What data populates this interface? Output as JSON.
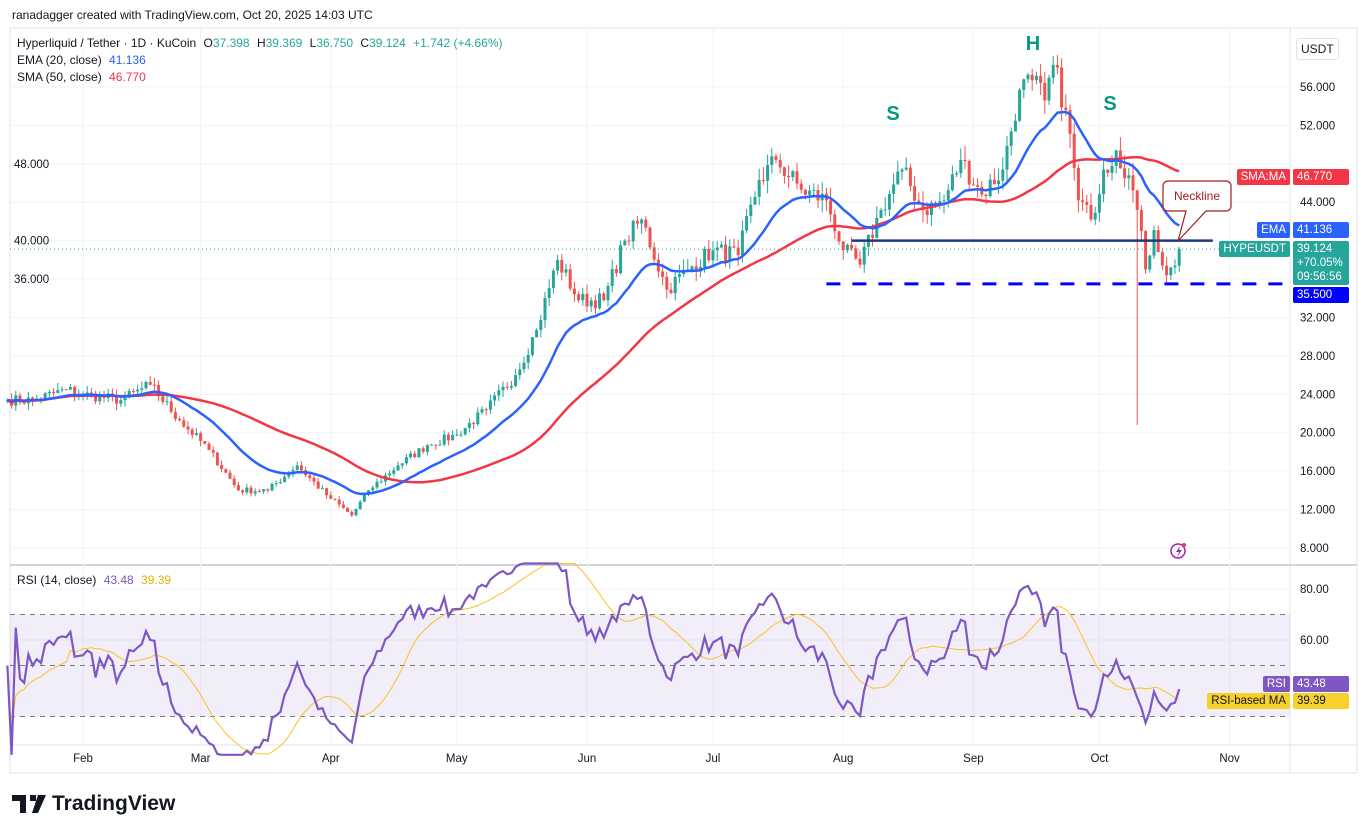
{
  "credit": "ranadagger created with TradingView.com, Oct 20, 2025 14:03 UTC",
  "legend": {
    "symbol": "Hyperliquid / Tether · 1D · KuCoin",
    "o_label": "O",
    "o": "37.398",
    "h_label": "H",
    "h": "39.369",
    "l_label": "L",
    "l": "36.750",
    "c_label": "C",
    "c": "39.124",
    "change": "+1.742 (+4.66%)",
    "ema_label": "EMA (20, close)",
    "ema_value": "41.136",
    "sma_label": "SMA (50, close)",
    "sma_value": "46.770",
    "rsi_label": "RSI (14, close)",
    "rsi_value": "43.48",
    "rsi_ma_value": "39.39"
  },
  "currency": "USDT",
  "price_labels": {
    "sma_tag": "SMA:MA",
    "sma": "46.770",
    "ema_tag": "EMA",
    "ema": "41.136",
    "symbol_tag": "HYPEUSDT",
    "last": "39.124",
    "pct": "+70.05%",
    "countdown": "09:56:56",
    "support": "35.500",
    "rsi_tag": "RSI",
    "rsi": "43.48",
    "rsi_ma_tag": "RSI-based MA",
    "rsi_ma": "39.39"
  },
  "annotations": {
    "head": "H",
    "left_shoulder": "S",
    "right_shoulder": "S",
    "neckline": "Neckline"
  },
  "footer": {
    "brand": "TradingView"
  },
  "colors": {
    "up": "#26a69a",
    "down": "#ef5350",
    "ema": "#2962ff",
    "sma": "#f23645",
    "rsi": "#7e57c2",
    "rsi_ma": "#f7c325",
    "support": "#0000ff",
    "neckline": "#1e3a78",
    "annotation": "#089981"
  },
  "chart_data": {
    "type": "candlestick",
    "yaxis_ticks": [
      "56.000",
      "52.000",
      "48.000",
      "44.000",
      "40.000",
      "36.000",
      "32.000",
      "28.000",
      "24.000",
      "20.000",
      "16.000",
      "12.000",
      "8.000"
    ],
    "ylim": [
      6.5,
      59.5
    ],
    "xaxis_ticks": [
      [
        "Feb",
        "2025-02-01"
      ],
      [
        "Mar",
        "2025-03-01"
      ],
      [
        "Apr",
        "2025-04-01"
      ],
      [
        "May",
        "2025-05-01"
      ],
      [
        "Jun",
        "2025-06-01"
      ],
      [
        "Jul",
        "2025-07-01"
      ],
      [
        "Aug",
        "2025-08-01"
      ],
      [
        "Sep",
        "2025-09-01"
      ],
      [
        "Oct",
        "2025-10-01"
      ],
      [
        "Nov",
        "2025-11-01"
      ]
    ],
    "xlim": [
      "2025-01-14",
      "2025-11-20"
    ],
    "approx_close_path": [
      [
        "2025-01-14",
        23.4
      ],
      [
        "2025-01-20",
        23.4
      ],
      [
        "2025-01-28",
        24.5
      ],
      [
        "2025-02-01",
        24
      ],
      [
        "2025-02-10",
        23.4
      ],
      [
        "2025-02-17",
        25
      ],
      [
        "2025-02-24",
        21.3
      ],
      [
        "2025-03-03",
        18.2
      ],
      [
        "2025-03-10",
        14
      ],
      [
        "2025-03-17",
        14
      ],
      [
        "2025-03-24",
        16.6
      ],
      [
        "2025-03-31",
        13.5
      ],
      [
        "2025-04-06",
        11.4
      ],
      [
        "2025-04-10",
        14
      ],
      [
        "2025-04-17",
        16.6
      ],
      [
        "2025-04-24",
        18.7
      ],
      [
        "2025-05-01",
        19.8
      ],
      [
        "2025-05-08",
        22.4
      ],
      [
        "2025-05-15",
        26
      ],
      [
        "2025-05-20",
        30.7
      ],
      [
        "2025-05-25",
        38
      ],
      [
        "2025-05-30",
        33.8
      ],
      [
        "2025-06-05",
        33.8
      ],
      [
        "2025-06-10",
        40
      ],
      [
        "2025-06-14",
        42.2
      ],
      [
        "2025-06-20",
        34.9
      ],
      [
        "2025-06-25",
        37
      ],
      [
        "2025-07-01",
        39
      ],
      [
        "2025-07-07",
        38.5
      ],
      [
        "2025-07-12",
        46.3
      ],
      [
        "2025-07-16",
        48.4
      ],
      [
        "2025-07-22",
        45.3
      ],
      [
        "2025-07-28",
        44.2
      ],
      [
        "2025-08-01",
        39
      ],
      [
        "2025-08-05",
        37.5
      ],
      [
        "2025-08-10",
        43.2
      ],
      [
        "2025-08-15",
        47.4
      ],
      [
        "2025-08-20",
        43.2
      ],
      [
        "2025-08-25",
        44.2
      ],
      [
        "2025-08-29",
        48.4
      ],
      [
        "2025-09-03",
        44.8
      ],
      [
        "2025-09-08",
        47.4
      ],
      [
        "2025-09-12",
        55.7
      ],
      [
        "2025-09-15",
        56.7
      ],
      [
        "2025-09-18",
        54.6
      ],
      [
        "2025-09-20",
        58.3
      ],
      [
        "2025-09-23",
        53.6
      ],
      [
        "2025-09-26",
        44.2
      ],
      [
        "2025-09-29",
        42.2
      ],
      [
        "2025-10-02",
        47.4
      ],
      [
        "2025-10-05",
        49.4
      ],
      [
        "2025-10-08",
        46.8
      ],
      [
        "2025-10-10",
        43.2
      ],
      [
        "2025-10-12",
        37
      ],
      [
        "2025-10-14",
        41.1
      ],
      [
        "2025-10-17",
        36.4
      ],
      [
        "2025-10-19",
        37.4
      ],
      [
        "2025-10-20",
        39.124
      ]
    ],
    "notable_wicks": [
      [
        "2025-10-10",
        20.8
      ]
    ],
    "last_candle": {
      "date": "2025-10-20",
      "open": 37.398,
      "high": 39.369,
      "low": 36.75,
      "close": 39.124
    },
    "ema_period": 20,
    "sma_period": 50,
    "neckline": {
      "price": 40.0,
      "from": "2025-08-03",
      "to": "2025-10-28"
    },
    "support": {
      "price": 35.5,
      "from": "2025-07-28"
    },
    "rsi": {
      "period": 14,
      "ma_period": 14,
      "ylim": [
        20,
        90
      ],
      "ticks": [
        "80.00",
        "60.00"
      ],
      "band": [
        30,
        70
      ],
      "mid": 50
    }
  }
}
